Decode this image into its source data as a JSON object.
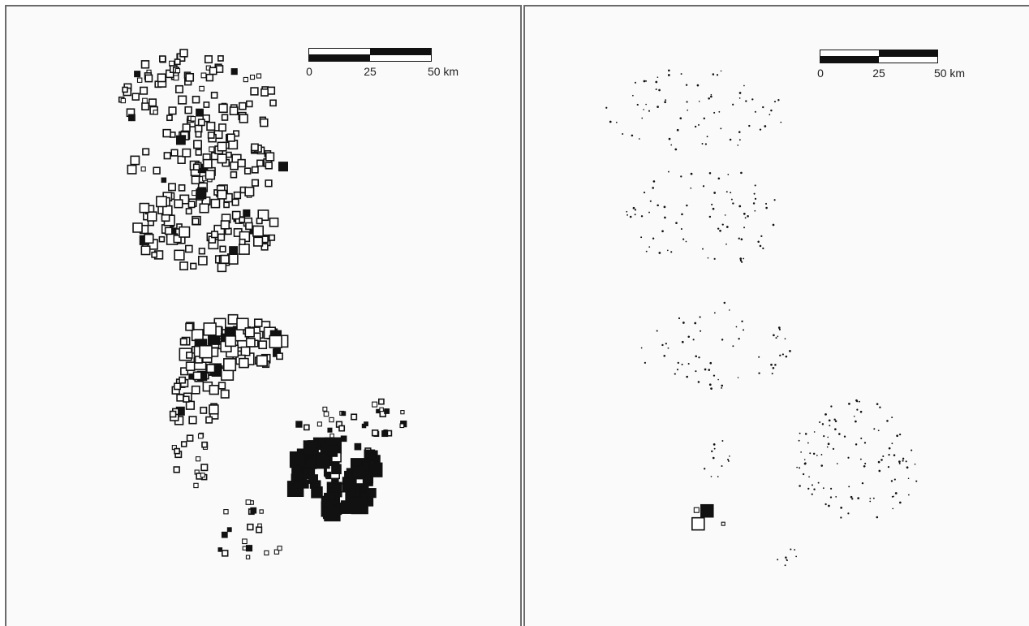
{
  "scale_bar": {
    "labels": [
      "0",
      "25",
      "50 km"
    ]
  },
  "colors": {
    "frame": "#6b6b6b",
    "background": "#fafafa",
    "ink": "#111111",
    "hollow": "#ffffff"
  },
  "panels": [
    {
      "name": "left-map",
      "symbol": "proportional squares, hollow (north) and filled (south-east cluster)"
    },
    {
      "name": "right-map",
      "symbol": "point dots with one proportional square pair"
    }
  ]
}
